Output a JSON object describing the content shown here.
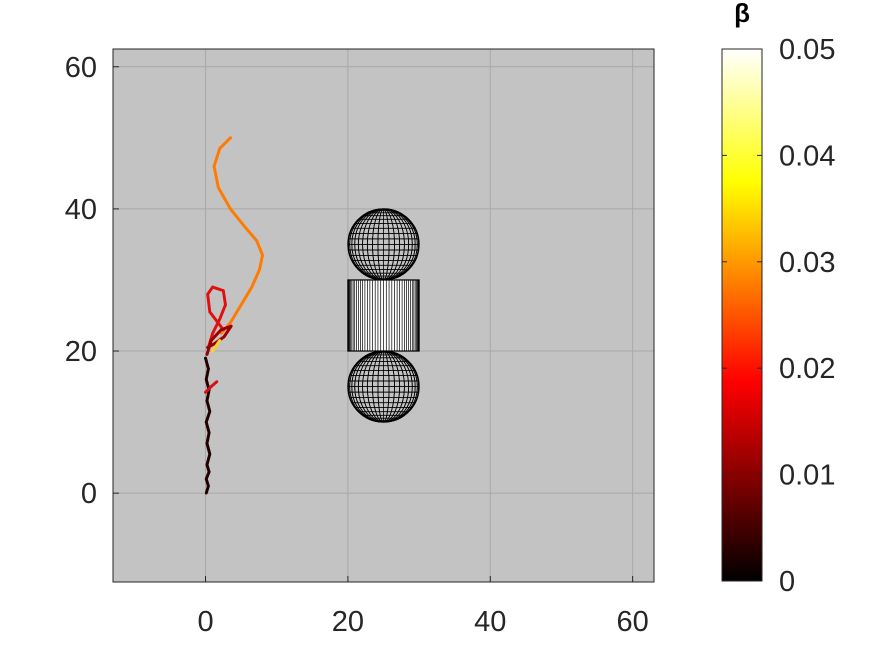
{
  "chart_data": {
    "type": "scatter",
    "title": "",
    "xlabel": "",
    "ylabel": "",
    "xlim": [
      -13,
      63
    ],
    "ylim": [
      -12.5,
      62.5
    ],
    "x_ticks": [
      "0",
      "20",
      "40",
      "60"
    ],
    "y_ticks": [
      "0",
      "20",
      "40",
      "60"
    ],
    "grid": true,
    "background_color": "#c3c3c3",
    "colorbar": {
      "title": "β",
      "colormap": "hot",
      "range": [
        0,
        0.05
      ],
      "ticks": [
        "0",
        "0.01",
        "0.02",
        "0.03",
        "0.04",
        "0.05"
      ]
    },
    "obstacles": [
      {
        "type": "sphere",
        "center": [
          25,
          35
        ],
        "radius": 5
      },
      {
        "type": "cylinder",
        "x_range": [
          20,
          30
        ],
        "y_range": [
          20,
          30
        ]
      },
      {
        "type": "sphere",
        "center": [
          25,
          15
        ],
        "radius": 5
      }
    ],
    "series": [
      {
        "color": "#ff7a00",
        "x": [
          3.5,
          2.0,
          1.2,
          1.8,
          3.5,
          5.5,
          7.2,
          8.0,
          7.6,
          6.5,
          5.0,
          3.5,
          2.2
        ],
        "y": [
          50,
          48.5,
          46.0,
          43.0,
          40.0,
          37.5,
          35.5,
          33.5,
          31.5,
          29.0,
          26.5,
          24.0,
          22.5
        ]
      },
      {
        "color": "#e01010",
        "x": [
          2.5,
          0.6,
          0.3,
          1.0,
          2.5,
          2.8,
          2.0,
          1.0,
          0.4
        ],
        "y": [
          23.0,
          25.5,
          28.0,
          29.0,
          28.5,
          26.5,
          24.5,
          22.5,
          20.5
        ]
      },
      {
        "color": "#9a0000",
        "x": [
          0.3,
          1.2,
          2.6,
          3.6,
          2.2,
          0.8,
          0.2
        ],
        "y": [
          20.5,
          21.0,
          22.0,
          23.5,
          23.0,
          21.5,
          19.5
        ]
      },
      {
        "color": "#200000",
        "x": [
          0.0,
          0.4,
          0.1,
          0.5,
          0.2,
          0.6,
          0.1,
          0.5,
          0.2,
          0.6,
          0.2,
          0.5,
          0.1,
          0.4,
          0.1
        ],
        "y": [
          19.0,
          17.5,
          16.0,
          14.5,
          13.0,
          11.5,
          10.0,
          8.5,
          7.0,
          5.5,
          4.0,
          3.0,
          2.0,
          1.0,
          0.0
        ]
      },
      {
        "color": "#d81010",
        "x": [
          0.0,
          0.8,
          1.6
        ],
        "y": [
          14.2,
          15.0,
          15.7
        ]
      },
      {
        "color": "#ffd020",
        "x": [
          1.0,
          2.0
        ],
        "y": [
          20.0,
          21.5
        ]
      }
    ]
  }
}
